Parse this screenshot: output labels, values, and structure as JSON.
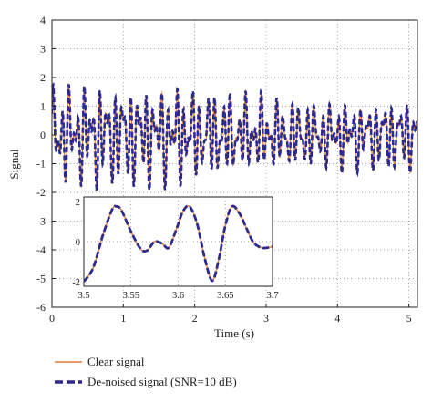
{
  "chart_data": {
    "type": "line",
    "title": "",
    "xlabel": "Time (s)",
    "ylabel": "Signal",
    "xlim": [
      0,
      5.12
    ],
    "ylim": [
      -6,
      4
    ],
    "xticks": [
      "0",
      "1",
      "2",
      "3",
      "4",
      "5"
    ],
    "yticks": [
      "4",
      "3",
      "2",
      "1",
      "0",
      "-1",
      "-2",
      "-3",
      "-4",
      "-5",
      "-6"
    ],
    "grid": true,
    "legend_placement": "bottom-left, below plot",
    "series": [
      {
        "name": "Clear signal",
        "style": "solid",
        "color": "#e07a3a"
      },
      {
        "name": "De-noised signal (SNR=10 dB)",
        "style": "dashed",
        "color": "#2e2a8c"
      }
    ],
    "main_signal": {
      "x_range": [
        0,
        5.12
      ],
      "amplitude_range": [
        -2,
        2
      ],
      "description": "dense oscillation between about -2 and 2"
    },
    "inset": {
      "xlim": [
        3.5,
        3.7
      ],
      "ylim": [
        -2,
        2
      ],
      "xticks": [
        "3.5",
        "3.55",
        "3.6",
        "3.65",
        "3.7"
      ],
      "yticks": [
        "2",
        "0",
        "-2"
      ],
      "points": [
        {
          "x": 3.5,
          "y": -2.0
        },
        {
          "x": 3.51,
          "y": -1.3
        },
        {
          "x": 3.52,
          "y": 0.3
        },
        {
          "x": 3.53,
          "y": 1.6
        },
        {
          "x": 3.535,
          "y": 1.75
        },
        {
          "x": 3.54,
          "y": 1.55
        },
        {
          "x": 3.55,
          "y": 0.5
        },
        {
          "x": 3.56,
          "y": -0.35
        },
        {
          "x": 3.567,
          "y": -0.45
        },
        {
          "x": 3.575,
          "y": 0.0
        },
        {
          "x": 3.583,
          "y": -0.1
        },
        {
          "x": 3.59,
          "y": -0.3
        },
        {
          "x": 3.598,
          "y": 0.6
        },
        {
          "x": 3.605,
          "y": 1.5
        },
        {
          "x": 3.612,
          "y": 1.75
        },
        {
          "x": 3.62,
          "y": 0.9
        },
        {
          "x": 3.628,
          "y": -0.8
        },
        {
          "x": 3.636,
          "y": -1.95
        },
        {
          "x": 3.643,
          "y": -0.9
        },
        {
          "x": 3.65,
          "y": 0.8
        },
        {
          "x": 3.657,
          "y": 1.75
        },
        {
          "x": 3.665,
          "y": 1.4
        },
        {
          "x": 3.673,
          "y": 0.6
        },
        {
          "x": 3.68,
          "y": -0.05
        },
        {
          "x": 3.688,
          "y": -0.3
        },
        {
          "x": 3.695,
          "y": -0.3
        },
        {
          "x": 3.7,
          "y": -0.25
        }
      ]
    }
  }
}
